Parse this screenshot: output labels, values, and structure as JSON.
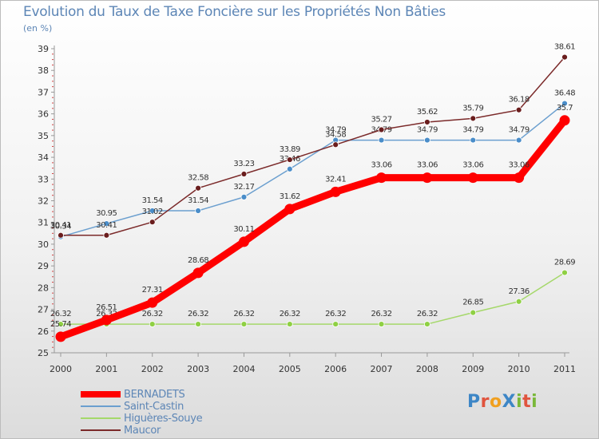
{
  "title": "Evolution du Taux de Taxe Foncière sur les Propriétés Non Bâties",
  "subtitle": "(en %)",
  "logo": {
    "text": "ProXiti",
    "letters": [
      {
        "ch": "P",
        "color": "#3d86c6"
      },
      {
        "ch": "r",
        "color": "#e0543e"
      },
      {
        "ch": "o",
        "color": "#f0a020"
      },
      {
        "ch": "X",
        "color": "#3d86c6"
      },
      {
        "ch": "i",
        "color": "#7ab83a"
      },
      {
        "ch": "t",
        "color": "#e0543e"
      },
      {
        "ch": "i",
        "color": "#7ab83a"
      }
    ]
  },
  "chart_data": {
    "type": "line",
    "title": "Evolution du Taux de Taxe Foncière sur les Propriétés Non Bâties",
    "ylabel": "(en %)",
    "xlabel": "",
    "x": [
      "2000",
      "2001",
      "2002",
      "2003",
      "2004",
      "2005",
      "2006",
      "2007",
      "2008",
      "2009",
      "2010",
      "2011"
    ],
    "ylim": [
      25,
      39
    ],
    "yticks": [
      "25",
      "26",
      "27",
      "28",
      "29",
      "30",
      "31",
      "32",
      "33",
      "34",
      "35",
      "36",
      "37",
      "38",
      "39"
    ],
    "grid": false,
    "legend_position": "bottom-left",
    "series": [
      {
        "name": "BERNADETS",
        "color": "#ff0000",
        "values": [
          25.74,
          26.51,
          27.31,
          28.68,
          30.11,
          31.62,
          32.41,
          33.06,
          33.06,
          33.06,
          33.06,
          35.7
        ],
        "labels": [
          "25.74",
          "26.51",
          "27.31",
          "28.68",
          "30.11",
          "31.62",
          "32.41",
          "33.06",
          "33.06",
          "33.06",
          "33.06",
          "35.7"
        ]
      },
      {
        "name": "Saint-Castin",
        "color": "#6b9fcf",
        "values": [
          30.34,
          30.95,
          31.54,
          31.54,
          32.17,
          33.46,
          34.79,
          34.79,
          34.79,
          34.79,
          34.79,
          36.48
        ],
        "labels": [
          "30.34",
          "30.95",
          "31.54",
          "31.54",
          "32.17",
          "33.46",
          "34.79",
          "34.79",
          "34.79",
          "34.79",
          "34.79",
          "36.48"
        ]
      },
      {
        "name": "Higuères-Souye",
        "color": "#a5d86a",
        "values": [
          26.32,
          26.32,
          26.32,
          26.32,
          26.32,
          26.32,
          26.32,
          26.32,
          26.32,
          26.85,
          27.36,
          28.69
        ],
        "labels": [
          "26.32",
          "26.32",
          "26.32",
          "26.32",
          "26.32",
          "26.32",
          "26.32",
          "26.32",
          "26.32",
          "26.85",
          "27.36",
          "28.69"
        ]
      },
      {
        "name": "Maucor",
        "color": "#7b2a2a",
        "values": [
          30.41,
          30.41,
          31.02,
          32.58,
          33.23,
          33.89,
          34.58,
          35.27,
          35.62,
          35.79,
          36.18,
          38.61
        ],
        "labels": [
          "30.41",
          "30.41",
          "31.02",
          "32.58",
          "33.23",
          "33.89",
          "34.58",
          "35.27",
          "35.62",
          "35.79",
          "36.18",
          "38.61"
        ]
      }
    ]
  }
}
